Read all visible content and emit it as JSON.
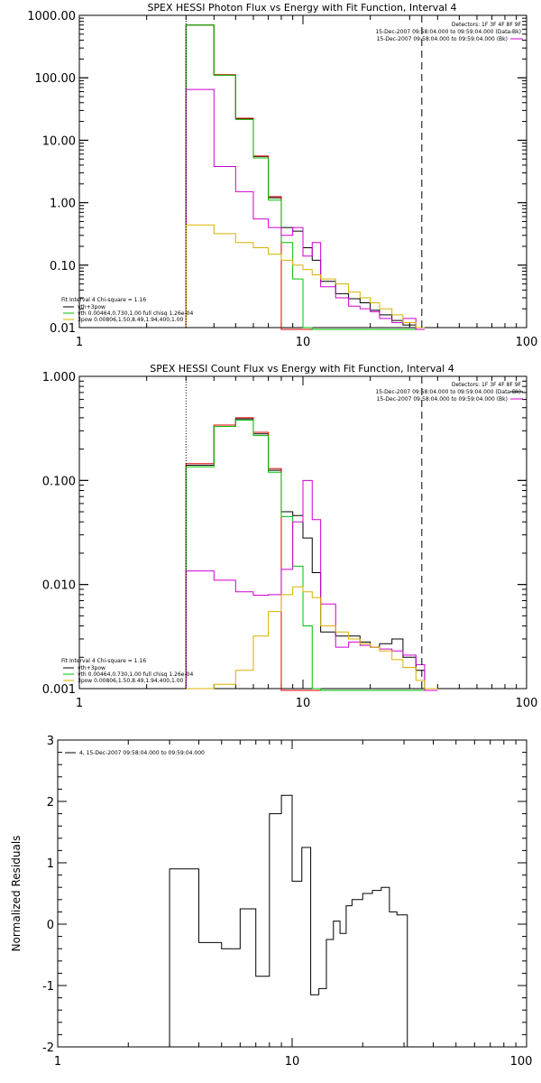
{
  "chart_data": [
    {
      "type": "line",
      "title": "SPEX HESSI Photon Flux vs Energy with Fit Function, Interval 4",
      "xscale": "log",
      "yscale": "log",
      "xlim": [
        1,
        100
      ],
      "ylim": [
        0.01,
        1000
      ],
      "xticks": [
        "1",
        "10",
        "100"
      ],
      "yticks": [
        "0.01",
        "0.10",
        "1.00",
        "10.00",
        "100.00",
        "1000.00"
      ],
      "ytick_values": [
        0.01,
        0.1,
        1,
        10,
        100,
        1000
      ],
      "header": [
        "Detectors: 1F 3F 4F 8F 9F",
        "15-Dec-2007 09:58:04.000 to 09:59:04.000 (Data-Bk)",
        "15-Dec-2007 09:58:04.000 to 09:59:04.000 (Bk)"
      ],
      "fit_text": [
        "Fit Interval 4   Chi-square = 1.16",
        "vth+3pow",
        "vth 0.00464,0.730,1.00  full chisq 1.26e-04",
        "3pow 0.00806,1.50,8.49,1.94,400,1.00"
      ],
      "vlines": [
        {
          "x": 3.0,
          "style": "dotted"
        },
        {
          "x": 34.0,
          "style": "dashed"
        }
      ],
      "edges": [
        3,
        4,
        5,
        6,
        7,
        8,
        9,
        10,
        11,
        12,
        14,
        16,
        18,
        20,
        22,
        25,
        28,
        32,
        35
      ],
      "series": [
        {
          "color": "#000000",
          "values": [
            700,
            110,
            22,
            5.5,
            1.2,
            0.4,
            0.35,
            0.19,
            0.12,
            0.055,
            0.035,
            0.029,
            0.025,
            0.019,
            0.016,
            0.013,
            0.011,
            0.0
          ]
        },
        {
          "color": "#e00000",
          "values": [
            700,
            112,
            22.5,
            5.6,
            1.25,
            0.0,
            0.0,
            0.0,
            0.0,
            0.0,
            0.0,
            0.0,
            0.0,
            0.0,
            0.0,
            0.0,
            0.0,
            0.0
          ]
        },
        {
          "color": "#00c000",
          "values": [
            700,
            110,
            21.5,
            5.2,
            1.1,
            0.23,
            0.06,
            0.009,
            0.0,
            0.0,
            0.0,
            0.0,
            0.0,
            0.0,
            0.0,
            0.0,
            0.0,
            0.0
          ]
        },
        {
          "color": "#d000d0",
          "values": [
            65,
            3.8,
            1.5,
            0.55,
            0.4,
            0.3,
            0.4,
            0.14,
            0.23,
            0.045,
            0.03,
            0.022,
            0.02,
            0.018,
            0.014,
            0.012,
            0.014,
            0.0
          ]
        },
        {
          "color": "#d8b000",
          "values": [
            0.44,
            0.32,
            0.23,
            0.19,
            0.15,
            0.12,
            0.1,
            0.085,
            0.07,
            0.06,
            0.05,
            0.037,
            0.03,
            0.025,
            0.02,
            0.016,
            0.012,
            0.009
          ]
        }
      ]
    },
    {
      "type": "line",
      "title": "SPEX HESSI Count Flux vs Energy with Fit Function, Interval 4",
      "xscale": "log",
      "yscale": "log",
      "xlim": [
        1,
        100
      ],
      "ylim": [
        0.001,
        1
      ],
      "xticks": [
        "1",
        "10",
        "100"
      ],
      "yticks": [
        "0.001",
        "0.010",
        "0.100",
        "1.000"
      ],
      "ytick_values": [
        0.001,
        0.01,
        0.1,
        1
      ],
      "header": [
        "Detectors: 1F 3F 4F 8F 9F",
        "15-Dec-2007 09:58:04.000 to 09:59:04.000 (Data-Bk)",
        "15-Dec-2007 09:58:04.000 to 09:59:04.000 (Bk)"
      ],
      "fit_text": [
        "Fit Interval 4   Chi-square = 1.16",
        "vth+3pow",
        "vth 0.00464,0.730,1.00  full chisq 1.26e-04",
        "3pow 0.00806,1.50,8.49,1.94,400,1.00"
      ],
      "vlines": [
        {
          "x": 3.0,
          "style": "dotted"
        },
        {
          "x": 34.0,
          "style": "dashed"
        }
      ],
      "edges": [
        3,
        4,
        5,
        6,
        7,
        8,
        9,
        10,
        11,
        12,
        14,
        16,
        18,
        20,
        22,
        25,
        28,
        32,
        35,
        40
      ],
      "series": [
        {
          "color": "#000000",
          "values": [
            0.14,
            0.33,
            0.39,
            0.28,
            0.125,
            0.05,
            0.046,
            0.028,
            0.013,
            0.0035,
            0.0032,
            0.0032,
            0.0028,
            0.0025,
            0.0027,
            0.003,
            0.002,
            0.0015,
            0.0
          ]
        },
        {
          "color": "#e00000",
          "values": [
            0.145,
            0.34,
            0.4,
            0.29,
            0.13,
            0.0,
            0.0,
            0.0,
            0.0,
            0.0,
            0.0,
            0.0,
            0.0,
            0.0,
            0.0,
            0.0,
            0.0,
            0.0,
            0.0
          ]
        },
        {
          "color": "#00c000",
          "values": [
            0.135,
            0.33,
            0.38,
            0.27,
            0.12,
            0.045,
            0.015,
            0.004,
            0.0007,
            0.0,
            0.0,
            0.0,
            0.0,
            0.0,
            0.0,
            0.0,
            0.0,
            0.0,
            0.0
          ]
        },
        {
          "color": "#d000d0",
          "values": [
            0.0135,
            0.011,
            0.0085,
            0.0079,
            0.008,
            0.014,
            0.04,
            0.1,
            0.042,
            0.0065,
            0.0025,
            0.0028,
            0.0026,
            0.0025,
            0.0024,
            0.0023,
            0.0021,
            0.0017,
            0.0
          ]
        },
        {
          "color": "#d8b000",
          "values": [
            0.0008,
            0.0011,
            0.0015,
            0.0032,
            0.0055,
            0.008,
            0.0095,
            0.0085,
            0.0075,
            0.004,
            0.0035,
            0.003,
            0.0027,
            0.0025,
            0.0023,
            0.0019,
            0.0016,
            0.0012,
            0.001
          ]
        }
      ]
    },
    {
      "type": "line",
      "xscale": "log",
      "xlim": [
        1,
        100
      ],
      "ylim": [
        -2,
        3
      ],
      "ylabel": "Normalized Residuals",
      "xticks": [
        "1",
        "10",
        "100"
      ],
      "yticks": [
        "-2",
        "-1",
        "0",
        "1",
        "2",
        "3"
      ],
      "ytick_values": [
        -2,
        -1,
        0,
        1,
        2,
        3
      ],
      "legend": "4, 15-Dec-2007 09:58:04.000 to 09:59:04.000",
      "edges": [
        3,
        4,
        5,
        6,
        7,
        8,
        9,
        10,
        11,
        12,
        13,
        14,
        15,
        16,
        17,
        18,
        20,
        22,
        24,
        26,
        28,
        31,
        34
      ],
      "series": [
        {
          "color": "#000000",
          "values": [
            0.9,
            -0.3,
            -0.4,
            0.25,
            -0.85,
            1.8,
            2.1,
            0.7,
            1.25,
            -1.15,
            -1.05,
            -0.25,
            0.05,
            -0.15,
            0.3,
            0.4,
            0.5,
            0.55,
            0.6,
            0.2,
            0.15,
            -2.0
          ]
        }
      ]
    }
  ]
}
